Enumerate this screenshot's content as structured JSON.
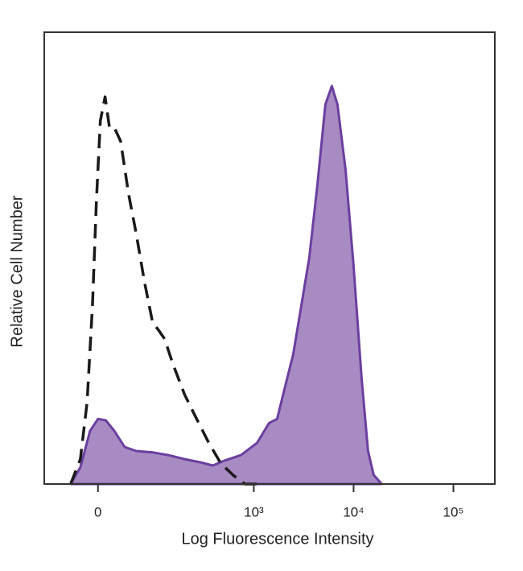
{
  "chart_data": {
    "type": "line",
    "xlabel": "Log Fluorescence Intensity",
    "ylabel": "Relative Cell Number",
    "xscale": "biexponential",
    "xlim": [
      -87,
      260000
    ],
    "xticks": [
      0,
      {
        "value": 1000,
        "label": "10³"
      },
      {
        "value": 10000,
        "label": "10⁴"
      },
      {
        "value": 100000,
        "label": "10⁵"
      }
    ],
    "ylim": [
      0,
      100
    ],
    "series": [
      {
        "color": "#6b3fa0",
        "fill": "#a88bc2",
        "style": "solid",
        "x": [
          -37,
          -23,
          -10,
          0,
          10,
          21,
          36,
          55,
          89,
          134,
          199,
          291,
          387,
          512,
          743,
          1078,
          1423,
          1713,
          2062,
          2483,
          2989,
          3600,
          4334,
          5218,
          6055,
          6891,
          8297,
          9990,
          12030,
          13940,
          15880,
          19160
        ],
        "values": [
          0,
          3.7,
          11.8,
          14.4,
          14.1,
          11.8,
          8.2,
          7.3,
          7,
          6.4,
          5.5,
          4.8,
          4.1,
          5.2,
          6.4,
          9.1,
          13.5,
          14.4,
          21.6,
          28.7,
          39.4,
          50.1,
          66.1,
          84,
          88.1,
          84,
          69.7,
          48.3,
          23.4,
          7.3,
          2,
          0
        ]
      },
      {
        "color": "#1a1a1a",
        "style": "dashed",
        "x": [
          -37,
          -23,
          -14,
          -7,
          -2,
          3,
          9,
          15,
          22,
          30,
          42,
          55,
          71,
          89,
          105,
          122,
          149,
          199,
          265,
          352,
          465,
          617,
          816,
          1078
        ],
        "values": [
          0,
          5.5,
          18,
          39.4,
          62.6,
          80.4,
          85.7,
          78.6,
          78.6,
          75.9,
          64.3,
          55.4,
          44.7,
          35.8,
          34,
          32.1,
          26.7,
          19.8,
          14.4,
          9.1,
          4.6,
          2,
          0,
          0
        ]
      }
    ]
  }
}
